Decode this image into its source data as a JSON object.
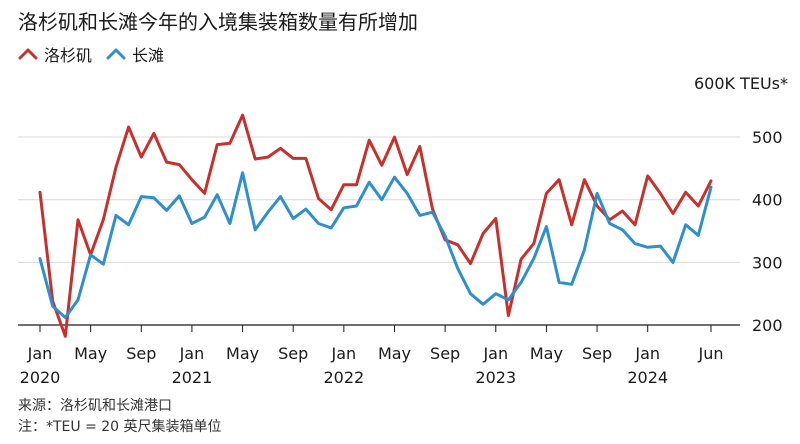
{
  "title": "洛杉矶和长滩今年的入境集装箱数量有所增加",
  "unit_label": "600K TEUs*",
  "source_line": "来源：洛杉矶和长滩港口",
  "note_line": "注：*TEU = 20 英尺集装箱单位",
  "chart_data": {
    "type": "line",
    "title": "洛杉矶和长滩今年的入境集装箱数量有所增加",
    "xlabel": "",
    "ylabel": "600K TEUs*",
    "ylim": [
      200,
      540
    ],
    "yticks": [
      200,
      300,
      400,
      500
    ],
    "grid": true,
    "legend": "top-left",
    "xtick_labels": [
      {
        "i": 0,
        "month": "Jan",
        "year": "2020"
      },
      {
        "i": 4,
        "month": "May",
        "year": ""
      },
      {
        "i": 8,
        "month": "Sep",
        "year": ""
      },
      {
        "i": 12,
        "month": "Jan",
        "year": "2021"
      },
      {
        "i": 16,
        "month": "May",
        "year": ""
      },
      {
        "i": 20,
        "month": "Sep",
        "year": ""
      },
      {
        "i": 24,
        "month": "Jan",
        "year": "2022"
      },
      {
        "i": 28,
        "month": "May",
        "year": ""
      },
      {
        "i": 32,
        "month": "Sep",
        "year": ""
      },
      {
        "i": 36,
        "month": "Jan",
        "year": "2023"
      },
      {
        "i": 40,
        "month": "May",
        "year": ""
      },
      {
        "i": 44,
        "month": "Sep",
        "year": ""
      },
      {
        "i": 48,
        "month": "Jan",
        "year": "2024"
      },
      {
        "i": 53,
        "month": "Jun",
        "year": ""
      }
    ],
    "series": [
      {
        "name": "洛杉矶",
        "color": "#c8312b",
        "values": [
          412,
          238,
          182,
          368,
          312,
          368,
          452,
          516,
          468,
          506,
          460,
          456,
          432,
          410,
          488,
          490,
          535,
          465,
          468,
          482,
          466,
          466,
          402,
          384,
          424,
          424,
          495,
          455,
          500,
          440,
          485,
          385,
          336,
          328,
          298,
          346,
          370,
          215,
          305,
          330,
          410,
          432,
          360,
          432,
          390,
          368,
          382,
          360,
          438,
          410,
          378,
          412,
          390,
          430
        ]
      },
      {
        "name": "长滩",
        "color": "#2e8fce",
        "values": [
          306,
          230,
          212,
          240,
          312,
          297,
          375,
          360,
          405,
          403,
          383,
          406,
          362,
          372,
          408,
          362,
          443,
          352,
          380,
          405,
          370,
          385,
          362,
          355,
          387,
          390,
          428,
          400,
          436,
          410,
          375,
          380,
          342,
          290,
          250,
          233,
          250,
          240,
          268,
          306,
          357,
          268,
          265,
          320,
          410,
          362,
          352,
          330,
          324,
          326,
          300,
          360,
          343,
          420
        ]
      }
    ]
  }
}
